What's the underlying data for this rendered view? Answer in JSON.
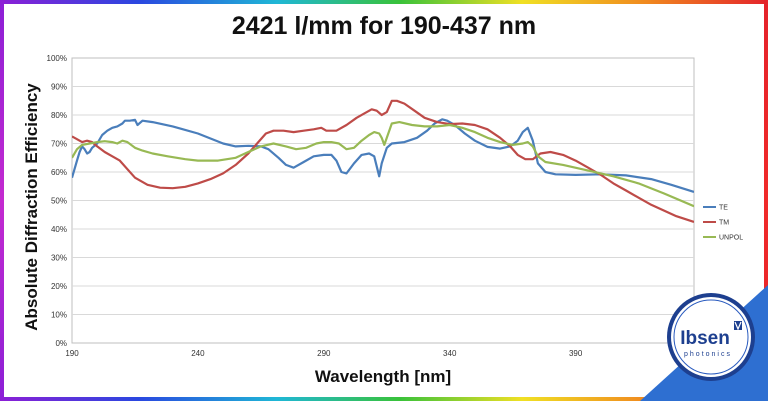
{
  "chart_data": {
    "type": "line",
    "title": "2421 l/mm for 190-437 nm",
    "xlabel": "Wavelength [nm]",
    "ylabel": "Absolute Diffraction  Efficiency",
    "xlim": [
      190,
      437
    ],
    "ylim": [
      0,
      100
    ],
    "xticks": [
      "190",
      "240",
      "290",
      "340",
      "390"
    ],
    "yticks": [
      "0%",
      "10%",
      "20%",
      "30%",
      "40%",
      "50%",
      "60%",
      "70%",
      "80%",
      "90%",
      "100%"
    ],
    "grid": true,
    "legend_position": "right",
    "series": [
      {
        "name": "TE",
        "color": "#4a7ebb",
        "points": [
          [
            190,
            58
          ],
          [
            191,
            61
          ],
          [
            192,
            64
          ],
          [
            193,
            67
          ],
          [
            194,
            69
          ],
          [
            195,
            68
          ],
          [
            196,
            66.5
          ],
          [
            197,
            67
          ],
          [
            198,
            68.5
          ],
          [
            200,
            70
          ],
          [
            202,
            73
          ],
          [
            204,
            74.5
          ],
          [
            206,
            75.5
          ],
          [
            208,
            76
          ],
          [
            210,
            77
          ],
          [
            211,
            78
          ],
          [
            213,
            78
          ],
          [
            215,
            78.3
          ],
          [
            216,
            76.5
          ],
          [
            218,
            78
          ],
          [
            222,
            77.5
          ],
          [
            230,
            76
          ],
          [
            240,
            73.5
          ],
          [
            250,
            70
          ],
          [
            255,
            69
          ],
          [
            260,
            69.2
          ],
          [
            265,
            69
          ],
          [
            268,
            68
          ],
          [
            272,
            65
          ],
          [
            275,
            62.5
          ],
          [
            278,
            61.5
          ],
          [
            282,
            63.5
          ],
          [
            286,
            65.5
          ],
          [
            290,
            66
          ],
          [
            293,
            66
          ],
          [
            295,
            64
          ],
          [
            297,
            60
          ],
          [
            299,
            59.5
          ],
          [
            302,
            63
          ],
          [
            305,
            66
          ],
          [
            308,
            66.5
          ],
          [
            310,
            65.5
          ],
          [
            311,
            62
          ],
          [
            312,
            58.5
          ],
          [
            313,
            63
          ],
          [
            315,
            68.5
          ],
          [
            317,
            70
          ],
          [
            322,
            70.5
          ],
          [
            327,
            72
          ],
          [
            331,
            74.5
          ],
          [
            334,
            77
          ],
          [
            337,
            78.5
          ],
          [
            339,
            78
          ],
          [
            342,
            76.5
          ],
          [
            346,
            73.5
          ],
          [
            350,
            71
          ],
          [
            355,
            68.8
          ],
          [
            360,
            68.2
          ],
          [
            364,
            69
          ],
          [
            367,
            71
          ],
          [
            369,
            74
          ],
          [
            371,
            75.5
          ],
          [
            373,
            71
          ],
          [
            375,
            63
          ],
          [
            378,
            60
          ],
          [
            382,
            59.2
          ],
          [
            390,
            59
          ],
          [
            400,
            59.2
          ],
          [
            410,
            58.8
          ],
          [
            420,
            57.5
          ],
          [
            428,
            55.5
          ],
          [
            437,
            53
          ]
        ]
      },
      {
        "name": "TM",
        "color": "#be4b48",
        "points": [
          [
            190,
            72.5
          ],
          [
            192,
            71.5
          ],
          [
            194,
            70.5
          ],
          [
            196,
            71
          ],
          [
            198,
            70.5
          ],
          [
            200,
            69
          ],
          [
            203,
            67
          ],
          [
            206,
            65.5
          ],
          [
            209,
            64
          ],
          [
            212,
            61
          ],
          [
            215,
            58
          ],
          [
            220,
            55.5
          ],
          [
            225,
            54.5
          ],
          [
            230,
            54.3
          ],
          [
            235,
            54.8
          ],
          [
            240,
            56
          ],
          [
            245,
            57.5
          ],
          [
            250,
            59.5
          ],
          [
            255,
            62.5
          ],
          [
            260,
            66.5
          ],
          [
            264,
            70.5
          ],
          [
            267,
            73.5
          ],
          [
            270,
            74.5
          ],
          [
            274,
            74.5
          ],
          [
            278,
            74
          ],
          [
            282,
            74.5
          ],
          [
            286,
            75
          ],
          [
            289,
            75.5
          ],
          [
            291,
            74.5
          ],
          [
            295,
            74.5
          ],
          [
            299,
            76.5
          ],
          [
            303,
            79
          ],
          [
            306,
            80.5
          ],
          [
            309,
            82
          ],
          [
            311,
            81.5
          ],
          [
            313,
            80
          ],
          [
            315,
            81
          ],
          [
            317,
            85
          ],
          [
            319,
            85
          ],
          [
            322,
            84
          ],
          [
            326,
            81.5
          ],
          [
            330,
            79
          ],
          [
            335,
            77.5
          ],
          [
            340,
            76.8
          ],
          [
            345,
            77
          ],
          [
            350,
            76.5
          ],
          [
            355,
            75
          ],
          [
            360,
            72
          ],
          [
            364,
            69
          ],
          [
            367,
            66
          ],
          [
            370,
            64.5
          ],
          [
            373,
            64.5
          ],
          [
            376,
            66.5
          ],
          [
            380,
            67
          ],
          [
            385,
            66
          ],
          [
            390,
            64
          ],
          [
            395,
            61.5
          ],
          [
            400,
            59
          ],
          [
            405,
            56
          ],
          [
            410,
            53.5
          ],
          [
            415,
            51
          ],
          [
            420,
            48.5
          ],
          [
            425,
            46.5
          ],
          [
            430,
            44.5
          ],
          [
            437,
            42.5
          ]
        ]
      },
      {
        "name": "UNPOL",
        "color": "#98b954",
        "points": [
          [
            190,
            65
          ],
          [
            192,
            68
          ],
          [
            194,
            69.5
          ],
          [
            197,
            70
          ],
          [
            200,
            70.5
          ],
          [
            203,
            70.8
          ],
          [
            206,
            70.5
          ],
          [
            208,
            70
          ],
          [
            210,
            71
          ],
          [
            212,
            70.5
          ],
          [
            215,
            68.5
          ],
          [
            218,
            67.5
          ],
          [
            222,
            66.5
          ],
          [
            228,
            65.5
          ],
          [
            235,
            64.5
          ],
          [
            240,
            64
          ],
          [
            248,
            64
          ],
          [
            255,
            65
          ],
          [
            260,
            67
          ],
          [
            265,
            69
          ],
          [
            270,
            70
          ],
          [
            275,
            69
          ],
          [
            279,
            68
          ],
          [
            283,
            68.5
          ],
          [
            287,
            70
          ],
          [
            290,
            70.5
          ],
          [
            293,
            70.5
          ],
          [
            296,
            70
          ],
          [
            299,
            68
          ],
          [
            302,
            68.5
          ],
          [
            305,
            71
          ],
          [
            308,
            73
          ],
          [
            310,
            74
          ],
          [
            312,
            73.5
          ],
          [
            313,
            72
          ],
          [
            314,
            69.5
          ],
          [
            315,
            72
          ],
          [
            317,
            77
          ],
          [
            320,
            77.5
          ],
          [
            325,
            76.5
          ],
          [
            330,
            76
          ],
          [
            335,
            76
          ],
          [
            340,
            76.5
          ],
          [
            345,
            75.5
          ],
          [
            350,
            74
          ],
          [
            355,
            72
          ],
          [
            360,
            70.5
          ],
          [
            365,
            69.5
          ],
          [
            369,
            70
          ],
          [
            371,
            70.5
          ],
          [
            373,
            69
          ],
          [
            375,
            65.5
          ],
          [
            378,
            63.5
          ],
          [
            385,
            62.5
          ],
          [
            395,
            60.5
          ],
          [
            405,
            58.5
          ],
          [
            415,
            56
          ],
          [
            425,
            52.5
          ],
          [
            437,
            48
          ]
        ]
      }
    ]
  },
  "logo": {
    "name": "Ibsen",
    "tagline": "photonics"
  }
}
